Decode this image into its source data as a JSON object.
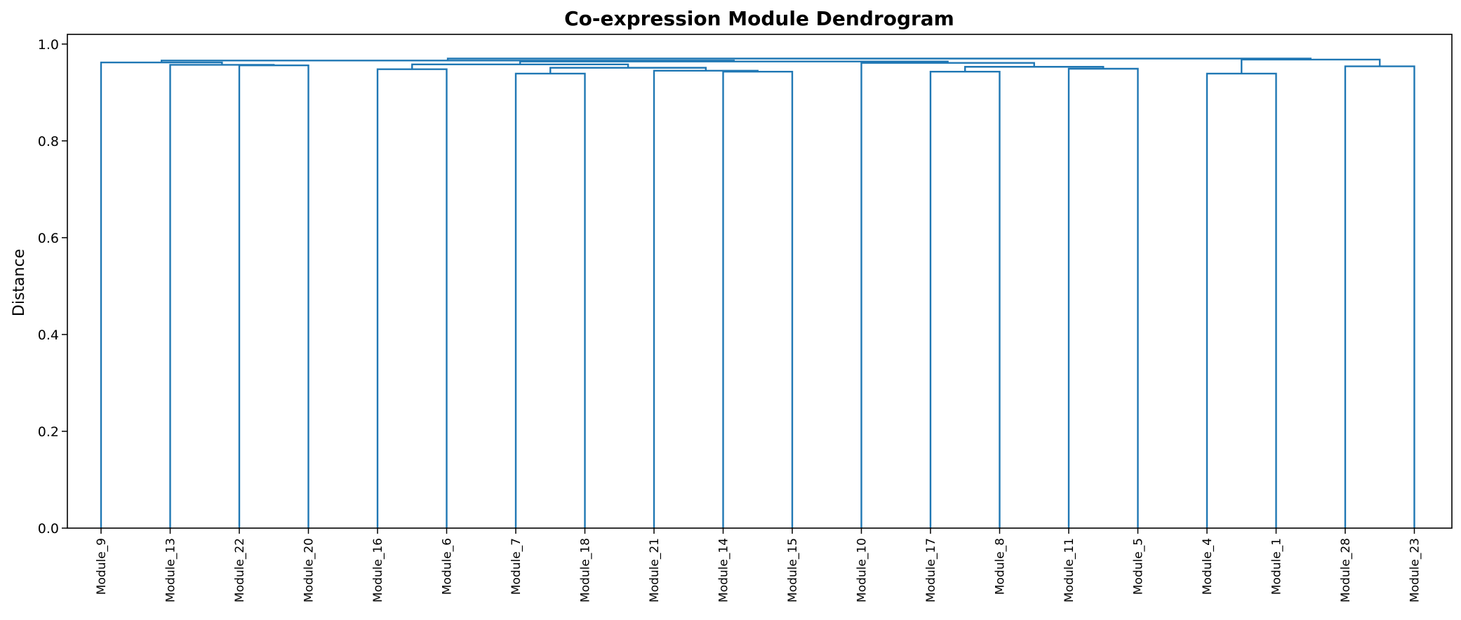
{
  "chart_data": {
    "type": "dendrogram",
    "title": "Co-expression Module Dendrogram",
    "ylabel": "Distance",
    "xlabel": "",
    "ylim": [
      0,
      1.02
    ],
    "yticks": [
      "0.0",
      "0.2",
      "0.4",
      "0.6",
      "0.8",
      "1.0"
    ],
    "ytick_values": [
      0,
      0.2,
      0.4,
      0.6,
      0.8,
      1.0
    ],
    "grid": false,
    "color": "#1f77b4",
    "leaves": [
      "Module_9",
      "Module_13",
      "Module_22",
      "Module_20",
      "Module_16",
      "Module_6",
      "Module_7",
      "Module_18",
      "Module_21",
      "Module_14",
      "Module_15",
      "Module_10",
      "Module_17",
      "Module_8",
      "Module_11",
      "Module_5",
      "Module_4",
      "Module_1",
      "Module_28",
      "Module_23"
    ],
    "merges": [
      {
        "a": 6,
        "b": 7,
        "h": 0.939
      },
      {
        "a": 16,
        "b": 17,
        "h": 0.939
      },
      {
        "a": 12,
        "b": 13,
        "h": 0.943
      },
      {
        "a": 9,
        "b": 10,
        "h": 0.943
      },
      {
        "a": 8,
        "b": 23,
        "h": 0.945
      },
      {
        "a": 4,
        "b": 5,
        "h": 0.948
      },
      {
        "a": 14,
        "b": 15,
        "h": 0.949
      },
      {
        "a": 20,
        "b": 24,
        "h": 0.951
      },
      {
        "a": 22,
        "b": 26,
        "h": 0.953
      },
      {
        "a": 18,
        "b": 19,
        "h": 0.954
      },
      {
        "a": 2,
        "b": 3,
        "h": 0.956
      },
      {
        "a": 1,
        "b": 30,
        "h": 0.957
      },
      {
        "a": 25,
        "b": 27,
        "h": 0.958
      },
      {
        "a": 11,
        "b": 28,
        "h": 0.961
      },
      {
        "a": 0,
        "b": 31,
        "h": 0.962
      },
      {
        "a": 32,
        "b": 33,
        "h": 0.964
      },
      {
        "a": 21,
        "b": 29,
        "h": 0.968
      },
      {
        "a": 34,
        "b": 35,
        "h": 0.966
      },
      {
        "a": 37,
        "b": 36,
        "h": 0.97
      }
    ]
  }
}
